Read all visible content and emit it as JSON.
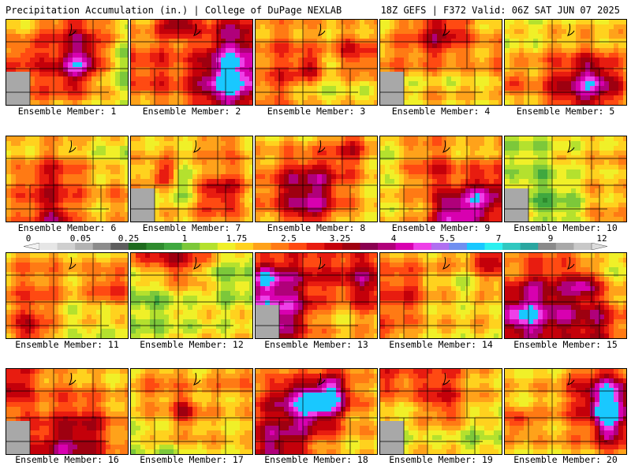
{
  "header": {
    "left": "Precipitation Accumulation (in.) | College of DuPage NEXLAB",
    "right": "18Z GEFS | F372 Valid: 06Z SAT JUN 07 2025"
  },
  "legend": {
    "ticks": [
      "0",
      "0.05",
      "0.25",
      "1",
      "1.75",
      "2.5",
      "3.25",
      "4",
      "5.5",
      "7",
      "9",
      "12"
    ],
    "colors": [
      "#e6e6e6",
      "#cfcfcf",
      "#b3b3b3",
      "#8c8c8c",
      "#5e5e5e",
      "#1e6b1e",
      "#2e8b2e",
      "#3fa83f",
      "#7cc83a",
      "#b4e12e",
      "#f0f028",
      "#ffd21e",
      "#ffa21a",
      "#ff7a14",
      "#ff4a12",
      "#e81c10",
      "#c4000a",
      "#9e0010",
      "#8a0050",
      "#b0007a",
      "#d800b0",
      "#ee40e8",
      "#b070f0",
      "#6f8ff0",
      "#19c8ff",
      "#2cf0f0",
      "#30c8c0",
      "#2aa6a0",
      "#8a8a8a",
      "#a8a8a8",
      "#c8c8c8"
    ]
  },
  "members": [
    {
      "label": "Ensemble Member: 1"
    },
    {
      "label": "Ensemble Member: 2"
    },
    {
      "label": "Ensemble Member: 3"
    },
    {
      "label": "Ensemble Member: 4"
    },
    {
      "label": "Ensemble Member: 5"
    },
    {
      "label": "Ensemble Member: 6"
    },
    {
      "label": "Ensemble Member: 7"
    },
    {
      "label": "Ensemble Member: 8"
    },
    {
      "label": "Ensemble Member: 9"
    },
    {
      "label": "Ensemble Member: 10"
    },
    {
      "label": "Ensemble Member: 11"
    },
    {
      "label": "Ensemble Member: 12"
    },
    {
      "label": "Ensemble Member: 13"
    },
    {
      "label": "Ensemble Member: 14"
    },
    {
      "label": "Ensemble Member: 15"
    },
    {
      "label": "Ensemble Member: 16"
    },
    {
      "label": "Ensemble Member: 17"
    },
    {
      "label": "Ensemble Member: 18"
    },
    {
      "label": "Ensemble Member: 19"
    },
    {
      "label": "Ensemble Member: 20"
    }
  ]
}
